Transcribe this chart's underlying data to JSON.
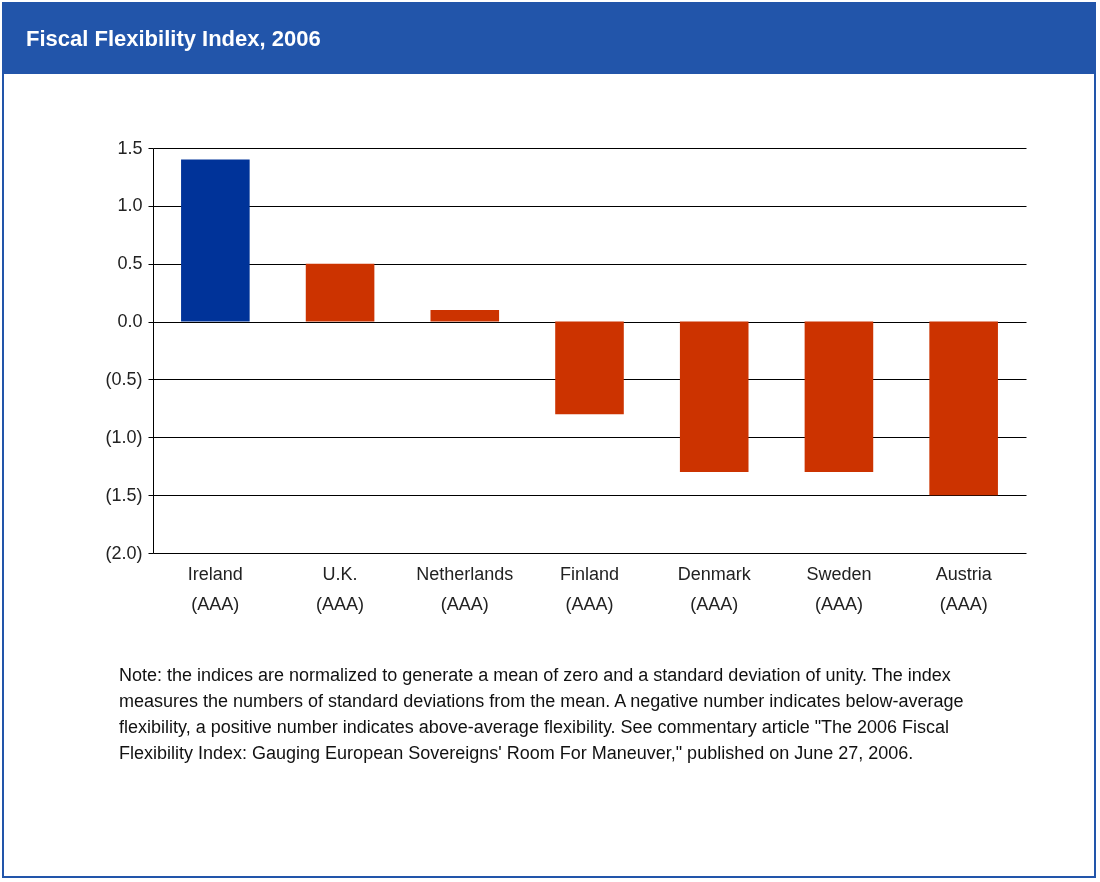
{
  "chart_data": {
    "type": "bar",
    "title": "Fiscal Flexibility Index, 2006",
    "categories": [
      "Ireland\n(AAA)",
      "U.K.\n(AAA)",
      "Netherlands\n(AAA)",
      "Finland\n(AAA)",
      "Denmark\n(AAA)",
      "Sweden\n(AAA)",
      "Austria\n(AAA)"
    ],
    "values": [
      1.4,
      0.5,
      0.1,
      -0.8,
      -1.3,
      -1.3,
      -1.5
    ],
    "colors": [
      "#003399",
      "#cc3300",
      "#cc3300",
      "#cc3300",
      "#cc3300",
      "#cc3300",
      "#cc3300"
    ],
    "ylim": [
      -2.0,
      1.5
    ],
    "yticks": [
      {
        "value": -2.0,
        "label": "(2.0)"
      },
      {
        "value": -1.5,
        "label": "(1.5)"
      },
      {
        "value": -1.0,
        "label": "(1.0)"
      },
      {
        "value": -0.5,
        "label": "(0.5)"
      },
      {
        "value": 0,
        "label": "0.0"
      },
      {
        "value": 0.5,
        "label": "0.5"
      },
      {
        "value": 1.0,
        "label": "1.0"
      },
      {
        "value": 1.5,
        "label": "1.5"
      }
    ],
    "grid": "y",
    "annotations": [
      "Note: the indices are normalized to generate a mean of zero and a standard deviation of unity. The index measures the numbers of standard deviations from the mean. A negative number indicates below-average flexibility, a positive number indicates above-average flexibility. See commentary article \"The 2006 Fiscal Flexibility Index: Gauging European Sovereigns' Room For Maneuver,\" published on June 27, 2006."
    ]
  }
}
